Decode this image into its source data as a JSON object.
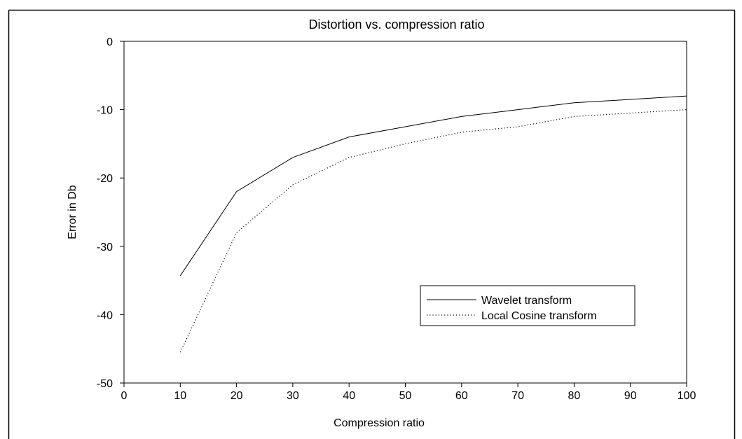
{
  "chart_data": {
    "type": "line",
    "title": "Distortion vs. compression ratio",
    "xlabel": "Compression ratio",
    "ylabel": "Error in Db",
    "xlim": [
      0,
      100
    ],
    "ylim": [
      -50,
      0
    ],
    "xticks": [
      0,
      10,
      20,
      30,
      40,
      50,
      60,
      70,
      80,
      90,
      100
    ],
    "yticks": [
      0,
      -10,
      -20,
      -30,
      -40,
      -50
    ],
    "grid": false,
    "legend_position": "lower-right",
    "series": [
      {
        "name": "Wavelet transform",
        "style": "solid",
        "color": "#000000",
        "x": [
          10,
          20,
          30,
          40,
          50,
          60,
          70,
          80,
          90,
          100
        ],
        "y": [
          -34.3,
          -22,
          -17,
          -14,
          -12.5,
          -11,
          -10,
          -9,
          -8.5,
          -8
        ]
      },
      {
        "name": "Local Cosine transform",
        "style": "dotted",
        "color": "#000000",
        "x": [
          10,
          20,
          30,
          40,
          50,
          60,
          70,
          80,
          90,
          100
        ],
        "y": [
          -45.5,
          -28,
          -21,
          -17,
          -15,
          -13.3,
          -12.5,
          -11,
          -10.5,
          -10
        ]
      }
    ]
  }
}
